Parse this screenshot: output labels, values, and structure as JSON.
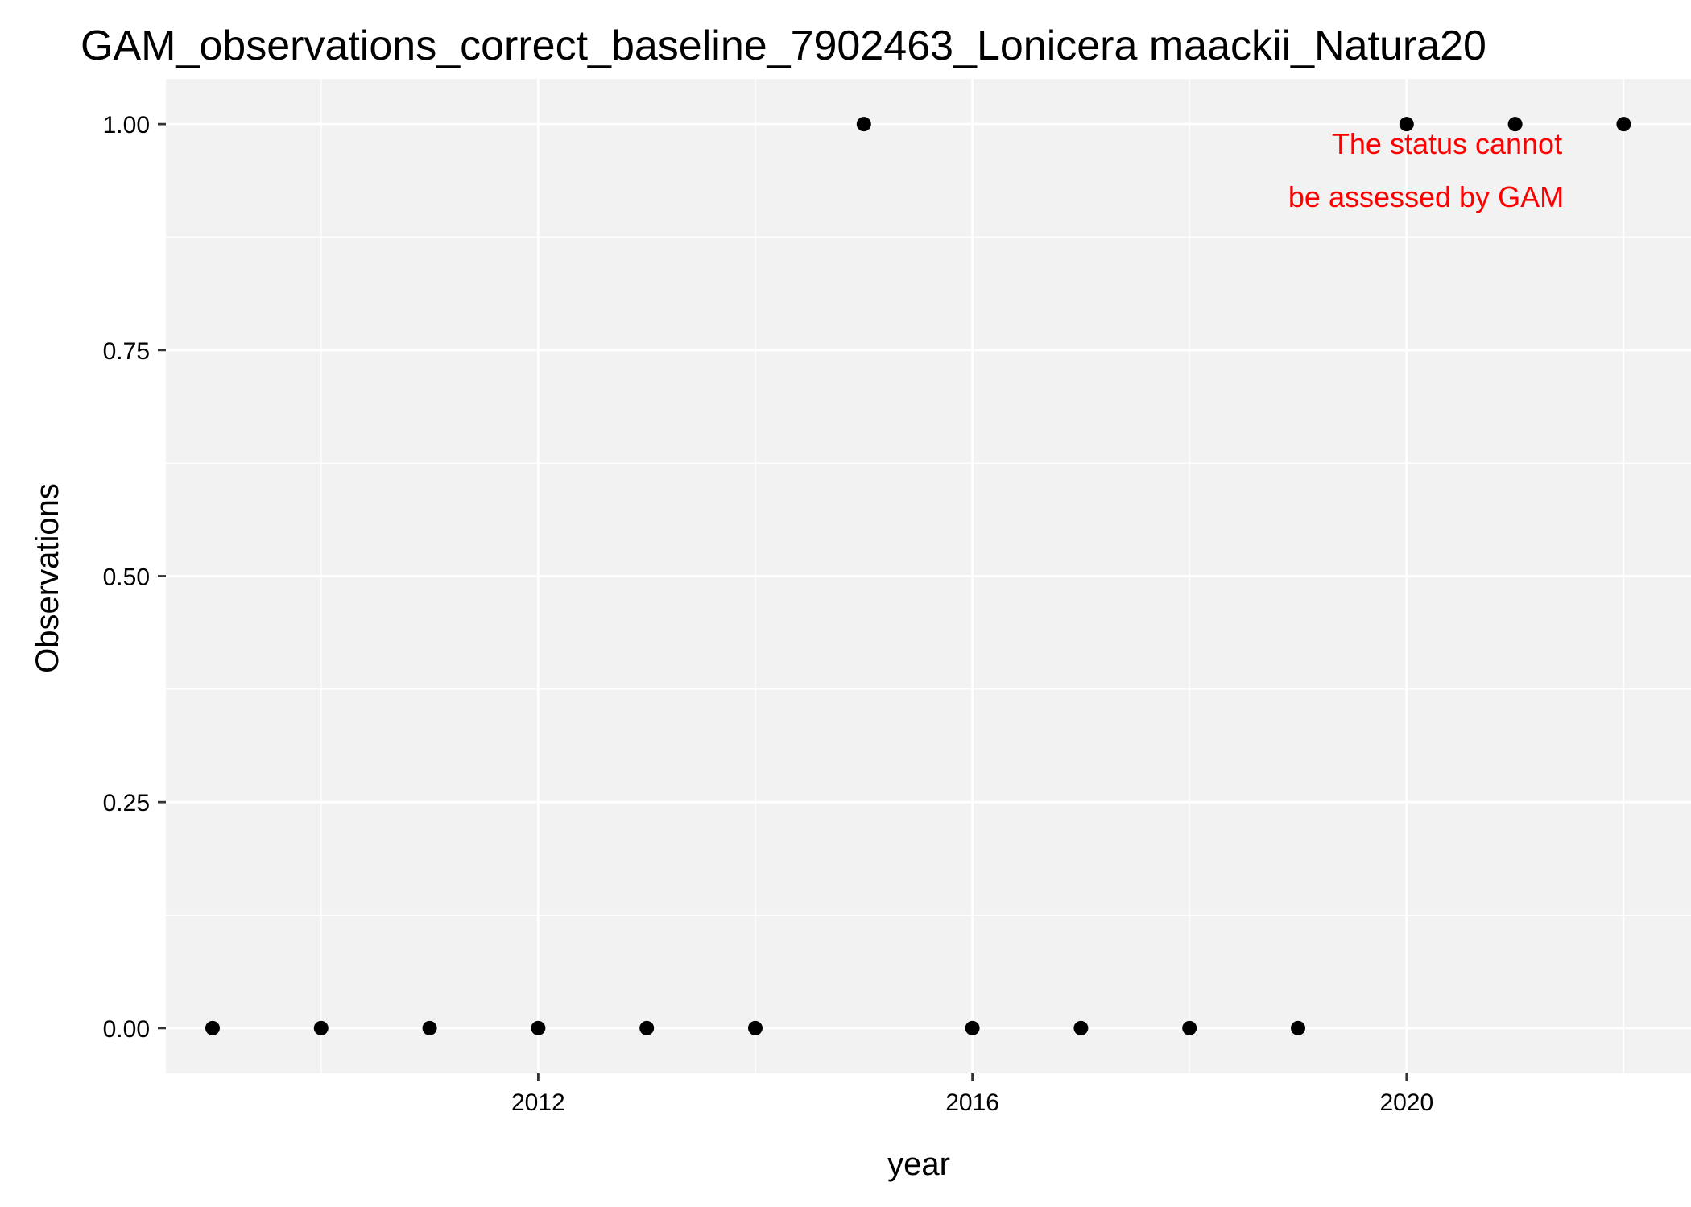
{
  "chart_data": {
    "type": "scatter",
    "title": "GAM_observations_correct_baseline_7902463_Lonicera maackii_Natura20",
    "xlabel": "year",
    "ylabel": "Observations",
    "xlim": [
      2008.57,
      2022.62
    ],
    "ylim": [
      -0.05,
      1.05
    ],
    "x_ticks": [
      2012,
      2016,
      2020
    ],
    "x_tick_labels": [
      "2012",
      "2016",
      "2020"
    ],
    "x_minor_ticks": [
      2010,
      2014,
      2018,
      2022
    ],
    "y_ticks": [
      0,
      0.25,
      0.5,
      0.75,
      1
    ],
    "y_tick_labels": [
      "0.00",
      "0.25",
      "0.50",
      "0.75",
      "1.00"
    ],
    "grid": true,
    "x": [
      2009,
      2010,
      2011,
      2012,
      2013,
      2014,
      2015,
      2016,
      2017,
      2018,
      2019,
      2020,
      2021,
      2022
    ],
    "y": [
      0,
      0,
      0,
      0,
      0,
      0,
      1,
      0,
      0,
      0,
      0,
      1,
      1,
      1
    ],
    "annotation": {
      "lines": [
        "The status cannot",
        "be assessed by GAM"
      ],
      "color": "#ff0000"
    },
    "colors": {
      "panel_background": "#f2f2f2",
      "grid": "#ffffff",
      "points": "#000000",
      "text": "#000000"
    }
  }
}
